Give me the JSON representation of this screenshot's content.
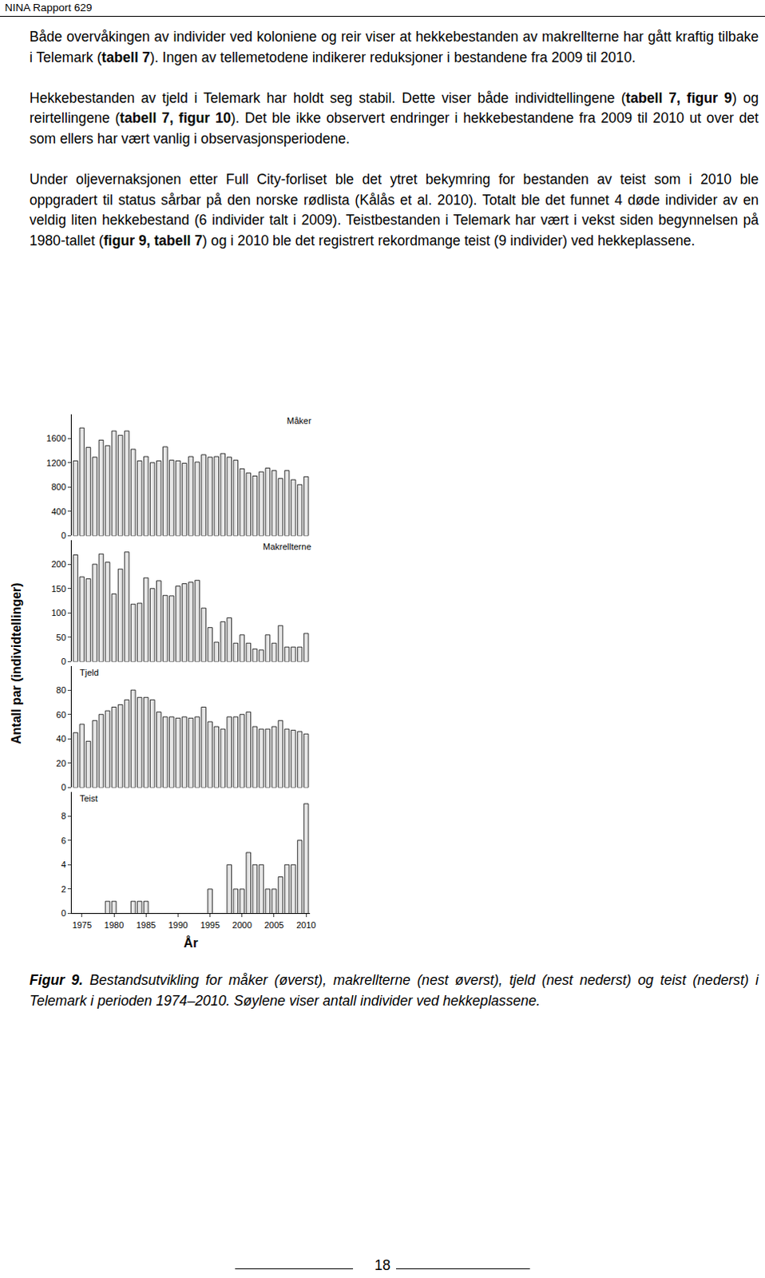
{
  "header": "NINA Rapport 629",
  "paragraphs": [
    [
      {
        "text": "Både overvåkingen av individer ved koloniene og reir viser at hekkebestanden av makrellterne har gått kraftig tilbake i Telemark ("
      },
      {
        "text": "tabell 7",
        "bold": true
      },
      {
        "text": "). Ingen av tellemetodene indikerer reduksjoner i bestandene fra 2009 til 2010."
      }
    ],
    [
      {
        "text": "Hekkebestanden av tjeld i Telemark har holdt seg stabil. Dette viser både individtellingene ("
      },
      {
        "text": "tabell 7, figur 9",
        "bold": true
      },
      {
        "text": ") og reirtellingene ("
      },
      {
        "text": "tabell 7, figur 10",
        "bold": true
      },
      {
        "text": "). Det ble ikke observert endringer i hekkebestandene fra 2009 til 2010 ut over det som ellers har vært vanlig i observasjonsperiodene."
      }
    ],
    [
      {
        "text": "Under oljevernaksjonen etter Full City-forliset ble det ytret bekymring for bestanden av teist som i 2010 ble oppgradert til status sårbar på den norske rødlista (Kålås et al. 2010). Totalt ble det funnet 4 døde individer av en veldig liten hekkebestand (6 individer talt i 2009). Teistbestanden i Telemark har vært i vekst siden begynnelsen på 1980-tallet ("
      },
      {
        "text": "figur 9, tabell 7",
        "bold": true
      },
      {
        "text": ") og i 2010 ble det registrert rekordmange teist (9 individer) ved hekkeplassene."
      }
    ]
  ],
  "figure": {
    "ylabel": "Antall par (individtellinger)",
    "xlabel": "År"
  },
  "chart_data": [
    {
      "type": "bar",
      "title": "Måker",
      "color": "#e6e6e6",
      "tick_labels": "y",
      "x": [
        1974,
        1975,
        1976,
        1977,
        1978,
        1979,
        1980,
        1981,
        1982,
        1983,
        1984,
        1985,
        1986,
        1987,
        1988,
        1989,
        1990,
        1991,
        1992,
        1993,
        1994,
        1995,
        1996,
        1997,
        1998,
        1999,
        2000,
        2001,
        2002,
        2003,
        2004,
        2005,
        2006,
        2007,
        2008,
        2009,
        2010
      ],
      "values": [
        1230,
        1770,
        1450,
        1290,
        1570,
        1480,
        1720,
        1650,
        1720,
        1420,
        1230,
        1300,
        1200,
        1230,
        1460,
        1240,
        1230,
        1190,
        1300,
        1210,
        1330,
        1290,
        1300,
        1350,
        1290,
        1240,
        1100,
        1030,
        980,
        1050,
        1110,
        1070,
        940,
        1070,
        920,
        840,
        970
      ],
      "ylim": [
        0,
        2000
      ],
      "yticks": [
        0,
        400,
        800,
        1200,
        1600
      ]
    },
    {
      "type": "bar",
      "title": "Makrellterne",
      "color": "#e6e6e6",
      "tick_labels": "y",
      "x": [
        1974,
        1975,
        1976,
        1977,
        1978,
        1979,
        1980,
        1981,
        1982,
        1983,
        1984,
        1985,
        1986,
        1987,
        1988,
        1989,
        1990,
        1991,
        1992,
        1993,
        1994,
        1995,
        1996,
        1997,
        1998,
        1999,
        2000,
        2001,
        2002,
        2003,
        2004,
        2005,
        2006,
        2007,
        2008,
        2009,
        2010
      ],
      "values": [
        219,
        174,
        170,
        200,
        221,
        204,
        139,
        190,
        225,
        118,
        120,
        172,
        150,
        166,
        136,
        135,
        155,
        160,
        163,
        167,
        110,
        70,
        40,
        82,
        90,
        38,
        55,
        38,
        26,
        24,
        55,
        38,
        74,
        30,
        30,
        30,
        58
      ],
      "ylim": [
        0,
        250
      ],
      "yticks": [
        0,
        50,
        100,
        150,
        200
      ]
    },
    {
      "type": "bar",
      "title": "Tjeld",
      "color": "#e6e6e6",
      "tick_labels": "y",
      "x": [
        1974,
        1975,
        1976,
        1977,
        1978,
        1979,
        1980,
        1981,
        1982,
        1983,
        1984,
        1985,
        1986,
        1987,
        1988,
        1989,
        1990,
        1991,
        1992,
        1993,
        1994,
        1995,
        1996,
        1997,
        1998,
        1999,
        2000,
        2001,
        2002,
        2003,
        2004,
        2005,
        2006,
        2007,
        2008,
        2009,
        2010
      ],
      "values": [
        45,
        52,
        38,
        55,
        60,
        63,
        66,
        68,
        72,
        80,
        74,
        74,
        72,
        62,
        58,
        58,
        57,
        58,
        57,
        58,
        66,
        54,
        50,
        48,
        58,
        58,
        60,
        62,
        50,
        48,
        48,
        50,
        55,
        48,
        47,
        46,
        44
      ],
      "ylim": [
        0,
        100
      ],
      "yticks": [
        0,
        20,
        40,
        60,
        80
      ]
    },
    {
      "type": "bar",
      "title": "Teist",
      "color": "#e6e6e6",
      "x": [
        1974,
        1975,
        1976,
        1977,
        1978,
        1979,
        1980,
        1981,
        1982,
        1983,
        1984,
        1985,
        1986,
        1987,
        1988,
        1989,
        1990,
        1991,
        1992,
        1993,
        1994,
        1995,
        1996,
        1997,
        1998,
        1999,
        2000,
        2001,
        2002,
        2003,
        2004,
        2005,
        2006,
        2007,
        2008,
        2009,
        2010
      ],
      "values": [
        0,
        0,
        0,
        0,
        0,
        1,
        1,
        0,
        0,
        1,
        1,
        1,
        0,
        0,
        0,
        0,
        0,
        0,
        0,
        0,
        0,
        2,
        0,
        0,
        4,
        2,
        2,
        5,
        4,
        4,
        2,
        2,
        3,
        4,
        4,
        6,
        9
      ],
      "ylim": [
        0,
        10
      ],
      "yticks": [
        0,
        2,
        4,
        6,
        8
      ],
      "xlim": [
        1973.4,
        2010.6
      ],
      "xticks": [
        1975,
        1980,
        1985,
        1990,
        1995,
        2000,
        2005,
        2010
      ]
    }
  ],
  "caption": [
    {
      "text": "Figur 9.",
      "bold": true
    },
    {
      "text": " Bestandsutvikling for måker (øverst), makrellterne (nest øverst), tjeld (nest nederst) og teist (nederst) i Telemark i perioden 1974–2010. Søylene viser antall individer ved hekkeplassene."
    }
  ],
  "page_number": "18"
}
